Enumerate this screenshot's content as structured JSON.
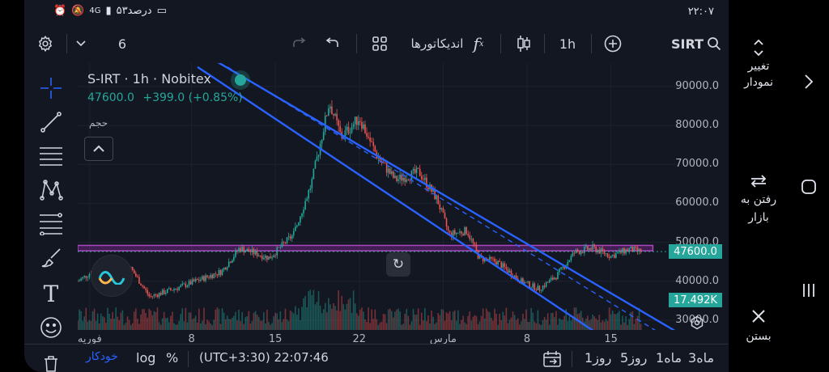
{
  "status_bar": {
    "time": "۲۲:۰۷",
    "battery_text": "۵۳درصد",
    "network": "4G"
  },
  "toolbar": {
    "interval_value": "6",
    "indicators_label": "اندیکاتورها",
    "timeframe": "1h",
    "symbol": "SIRT"
  },
  "legend": {
    "title": "S-IRT · 1h · Nobitex",
    "last_price": "47600.0",
    "change": "+399.0 (+0.85%)"
  },
  "volume_label": "حجم",
  "price_axis": {
    "labels": [
      "90000.0",
      "80000.0",
      "70000.0",
      "60000.0",
      "50000.0",
      "40000.0",
      "30000.0"
    ],
    "current_price_tag": "47600.0",
    "volume_tag": "17.492K",
    "colors": {
      "price_tag": "#26a69a",
      "volume_tag": "#26a69a"
    }
  },
  "time_axis": {
    "labels": [
      "فوریه",
      "8",
      "15",
      "22",
      "مارس",
      "8",
      "15"
    ]
  },
  "bottom_bar": {
    "auto": "خودکار",
    "log": "log",
    "percent": "%",
    "timezone_time": "(UTC+3:30) 22:07:46",
    "ranges": [
      "1روز",
      "5روز",
      "1ماه",
      "3ماه"
    ]
  },
  "side_panel": {
    "change_chart": "تغییر نمودار",
    "go_to_market": "رفتن به بازار",
    "close": "بستن"
  },
  "chart_data": {
    "type": "candlestick",
    "symbol": "S-IRT",
    "interval": "1h",
    "exchange": "Nobitex",
    "ylim": [
      27500,
      96000
    ],
    "y_ticks": [
      30000,
      40000,
      50000,
      60000,
      70000,
      80000,
      90000
    ],
    "x_ticks": [
      "فوریه",
      "8",
      "15",
      "22",
      "مارس",
      "8",
      "15"
    ],
    "close_path_keypoints": [
      {
        "t": 0,
        "y": 40000
      },
      {
        "t": 4,
        "y": 44000
      },
      {
        "t": 7,
        "y": 45500
      },
      {
        "t": 9,
        "y": 43000
      },
      {
        "t": 12,
        "y": 36000
      },
      {
        "t": 17,
        "y": 38500
      },
      {
        "t": 24,
        "y": 42500
      },
      {
        "t": 27,
        "y": 48500
      },
      {
        "t": 32,
        "y": 46000
      },
      {
        "t": 36,
        "y": 52000
      },
      {
        "t": 39,
        "y": 65000
      },
      {
        "t": 42,
        "y": 86000
      },
      {
        "t": 44,
        "y": 77000
      },
      {
        "t": 47,
        "y": 82000
      },
      {
        "t": 50,
        "y": 72000
      },
      {
        "t": 53,
        "y": 66000
      },
      {
        "t": 57,
        "y": 68000
      },
      {
        "t": 60,
        "y": 61000
      },
      {
        "t": 62,
        "y": 52000
      },
      {
        "t": 65,
        "y": 53000
      },
      {
        "t": 67,
        "y": 46000
      },
      {
        "t": 70,
        "y": 45000
      },
      {
        "t": 74,
        "y": 40000
      },
      {
        "t": 77,
        "y": 38000
      },
      {
        "t": 80,
        "y": 41500
      },
      {
        "t": 83,
        "y": 47500
      },
      {
        "t": 86,
        "y": 48500
      },
      {
        "t": 89,
        "y": 46500
      },
      {
        "t": 92,
        "y": 48200
      },
      {
        "t": 94,
        "y": 47600
      }
    ],
    "horizontal_zone": {
      "from": 47800,
      "to": 49200,
      "color": "#9c27b0"
    },
    "channel": {
      "color": "#2962ff",
      "upper": [
        {
          "t": 17,
          "y": 102000
        },
        {
          "t": 100,
          "y": 27000
        }
      ],
      "middle_dashed": [
        {
          "t": 25,
          "y": 95000
        },
        {
          "t": 100,
          "y": 24000
        }
      ],
      "lower": [
        {
          "t": 20,
          "y": 95000
        },
        {
          "t": 100,
          "y": 13000
        }
      ]
    },
    "current_price": 47600,
    "current_change": "+399.0 (+0.85%)",
    "volume_current": "17.492K"
  }
}
